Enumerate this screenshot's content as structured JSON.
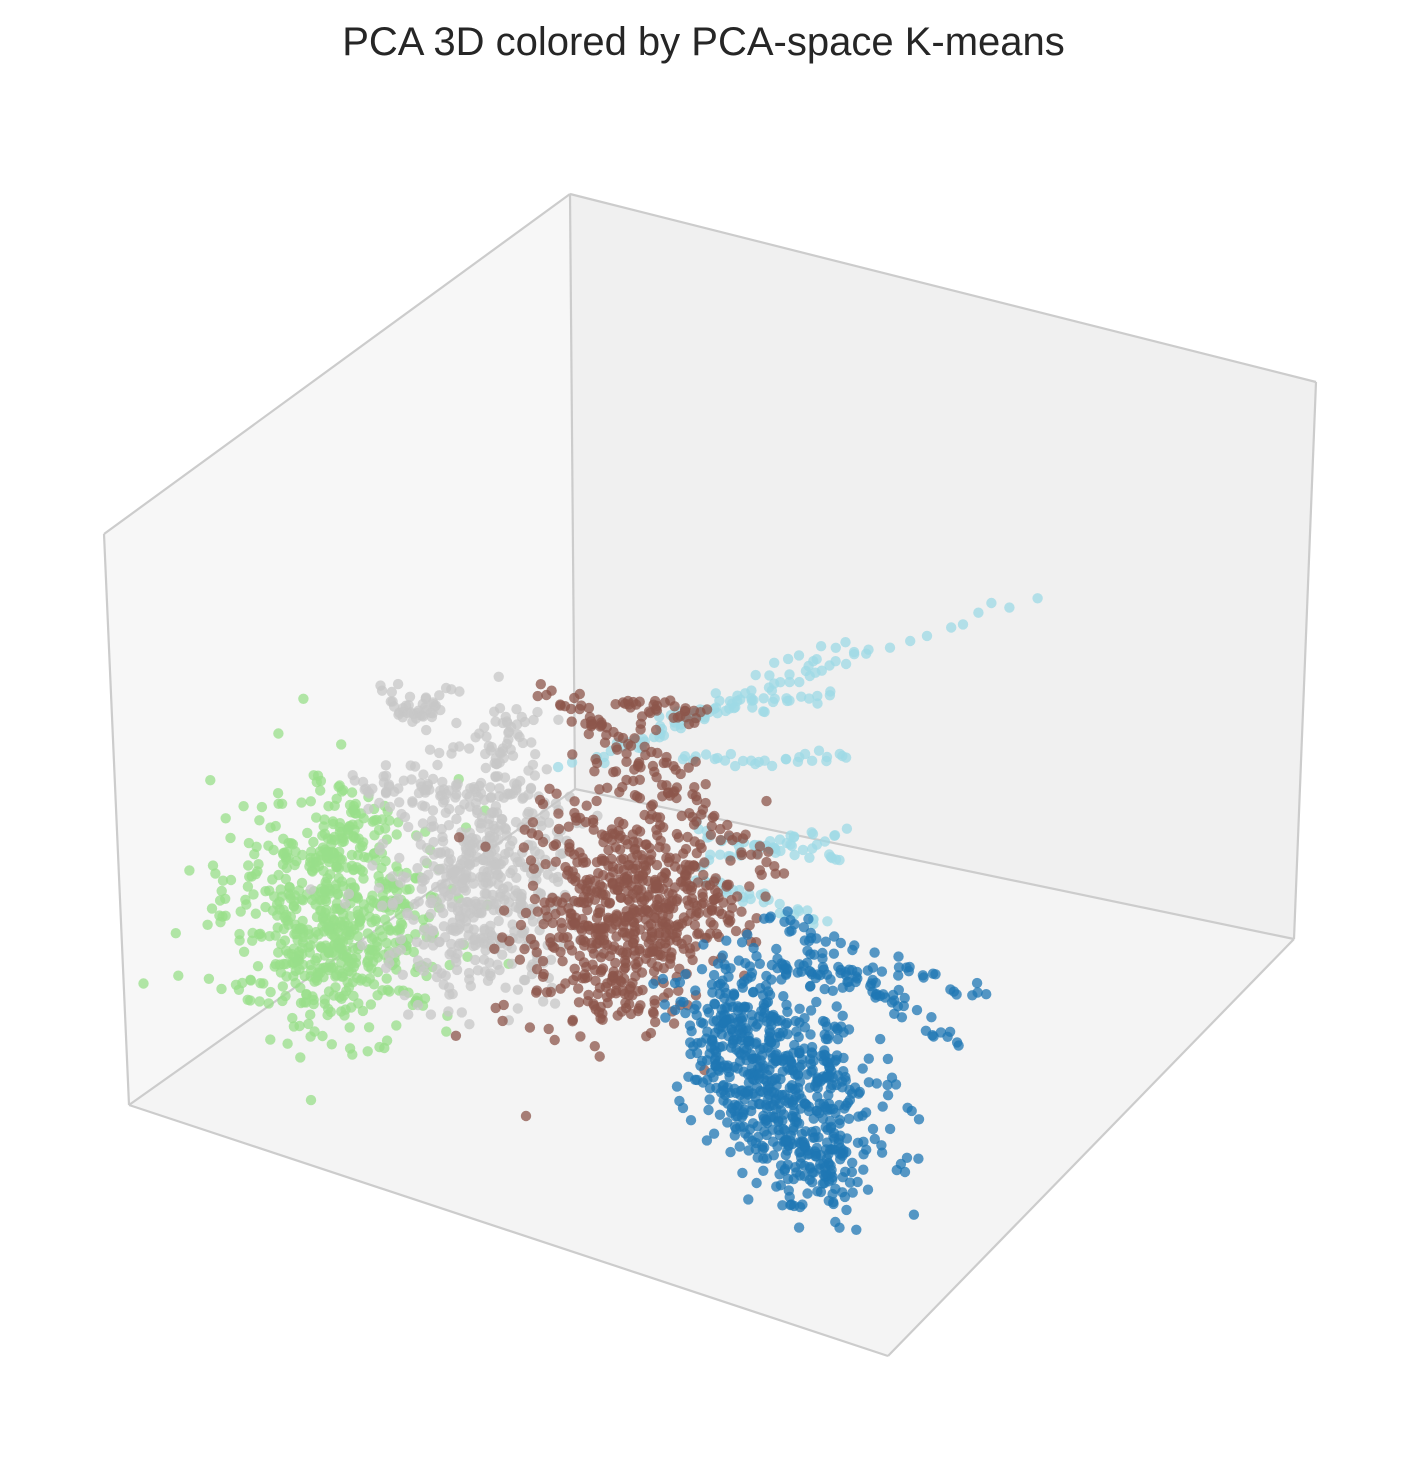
{
  "chart_data": {
    "type": "scatter",
    "projection": "3d",
    "title": "PCA 3D colored by PCA-space K-means",
    "xlabel": "",
    "ylabel": "",
    "zlabel": "",
    "grid": false,
    "tick_labels": false,
    "pane_color": "#f2f2f2",
    "edge_color": "#cccccc",
    "clusters": [
      {
        "cluster": 1,
        "color": "#1f77b4",
        "region": "front-right, lowest along vertical axis",
        "approx_points": 900
      },
      {
        "cluster": 2,
        "color": "#8c564b",
        "region": "center",
        "approx_points": 800
      },
      {
        "cluster": 3,
        "color": "#c7c7c7",
        "region": "center-left",
        "approx_points": 650
      },
      {
        "cluster": 4,
        "color": "#98df8a",
        "region": "far left",
        "approx_points": 600
      },
      {
        "cluster": 5,
        "color": "#9edae5",
        "region": "back-right, trailing streaks",
        "approx_points": 250
      }
    ]
  }
}
